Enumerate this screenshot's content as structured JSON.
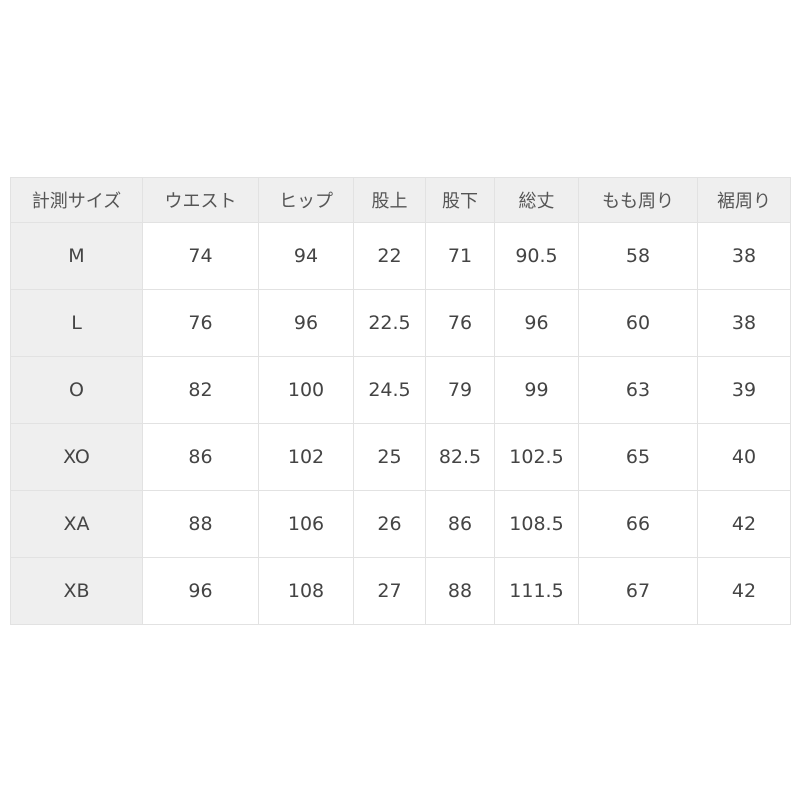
{
  "table": {
    "headers": [
      "計測サイズ",
      "ウエスト",
      "ヒップ",
      "股上",
      "股下",
      "総丈",
      "もも周り",
      "裾周り"
    ],
    "rows": [
      [
        "M",
        "74",
        "94",
        "22",
        "71",
        "90.5",
        "58",
        "38"
      ],
      [
        "L",
        "76",
        "96",
        "22.5",
        "76",
        "96",
        "60",
        "38"
      ],
      [
        "O",
        "82",
        "100",
        "24.5",
        "79",
        "99",
        "63",
        "39"
      ],
      [
        "XO",
        "86",
        "102",
        "25",
        "82.5",
        "102.5",
        "65",
        "40"
      ],
      [
        "XA",
        "88",
        "106",
        "26",
        "86",
        "108.5",
        "66",
        "42"
      ],
      [
        "XB",
        "96",
        "108",
        "27",
        "88",
        "111.5",
        "67",
        "42"
      ]
    ]
  }
}
